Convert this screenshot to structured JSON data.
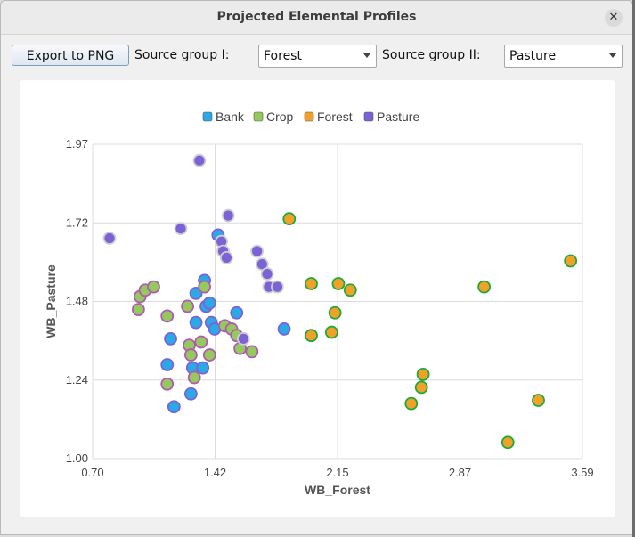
{
  "window": {
    "title": "Projected Elemental Profiles",
    "close_symbol": "✕"
  },
  "toolbar": {
    "export_label": "Export to PNG",
    "source1_label": "Source group I:",
    "source1_value": "Forest",
    "source2_label": "Source group II:",
    "source2_value": "Pasture"
  },
  "chart_data": {
    "type": "scatter",
    "xlabel": "WB_Forest",
    "ylabel": "WB_Pasture",
    "xlim": [
      0.7,
      3.59
    ],
    "ylim": [
      1.0,
      1.97
    ],
    "xticks": [
      "0.70",
      "1.42",
      "2.15",
      "2.87",
      "3.59"
    ],
    "yticks": [
      "1.97",
      "1.72",
      "1.48",
      "1.24",
      "1.00"
    ],
    "grid": true,
    "legend_position": "top-center",
    "series": [
      {
        "name": "Bank",
        "fill": "#2ba9e6",
        "stroke": "#7b62d6",
        "points": [
          [
            1.16,
            1.37
          ],
          [
            1.14,
            1.29
          ],
          [
            1.18,
            1.16
          ],
          [
            1.29,
            1.28
          ],
          [
            1.35,
            1.28
          ],
          [
            1.28,
            1.2
          ],
          [
            1.31,
            1.42
          ],
          [
            1.37,
            1.47
          ],
          [
            1.4,
            1.42
          ],
          [
            1.42,
            1.4
          ],
          [
            1.31,
            1.51
          ],
          [
            1.36,
            1.55
          ],
          [
            1.39,
            1.48
          ],
          [
            1.55,
            1.45
          ],
          [
            1.83,
            1.4
          ],
          [
            1.44,
            1.69
          ]
        ]
      },
      {
        "name": "Crop",
        "fill": "#94c95c",
        "stroke": "#b15ab2",
        "points": [
          [
            0.97,
            1.46
          ],
          [
            0.98,
            1.5
          ],
          [
            1.01,
            1.52
          ],
          [
            1.06,
            1.53
          ],
          [
            1.14,
            1.44
          ],
          [
            1.26,
            1.47
          ],
          [
            1.36,
            1.53
          ],
          [
            1.27,
            1.35
          ],
          [
            1.28,
            1.32
          ],
          [
            1.34,
            1.36
          ],
          [
            1.39,
            1.32
          ],
          [
            1.48,
            1.41
          ],
          [
            1.52,
            1.4
          ],
          [
            1.55,
            1.38
          ],
          [
            1.57,
            1.34
          ],
          [
            1.64,
            1.33
          ],
          [
            1.3,
            1.25
          ],
          [
            1.14,
            1.23
          ]
        ]
      },
      {
        "name": "Forest",
        "fill": "#f2a128",
        "stroke": "#1ea93b",
        "points": [
          [
            1.86,
            1.74
          ],
          [
            1.99,
            1.54
          ],
          [
            2.15,
            1.54
          ],
          [
            2.22,
            1.52
          ],
          [
            1.99,
            1.38
          ],
          [
            2.11,
            1.39
          ],
          [
            2.13,
            1.45
          ],
          [
            2.58,
            1.17
          ],
          [
            2.64,
            1.22
          ],
          [
            2.65,
            1.26
          ],
          [
            3.01,
            1.53
          ],
          [
            3.15,
            1.05
          ],
          [
            3.33,
            1.18
          ],
          [
            3.52,
            1.61
          ]
        ]
      },
      {
        "name": "Pasture",
        "fill": "#7b62d6",
        "stroke": "#cfcfcf",
        "points": [
          [
            0.8,
            1.68
          ],
          [
            1.22,
            1.71
          ],
          [
            1.33,
            1.92
          ],
          [
            1.46,
            1.67
          ],
          [
            1.47,
            1.64
          ],
          [
            1.49,
            1.62
          ],
          [
            1.5,
            1.75
          ],
          [
            1.67,
            1.64
          ],
          [
            1.7,
            1.6
          ],
          [
            1.73,
            1.57
          ],
          [
            1.74,
            1.53
          ],
          [
            1.79,
            1.53
          ],
          [
            1.59,
            1.37
          ]
        ]
      }
    ]
  }
}
